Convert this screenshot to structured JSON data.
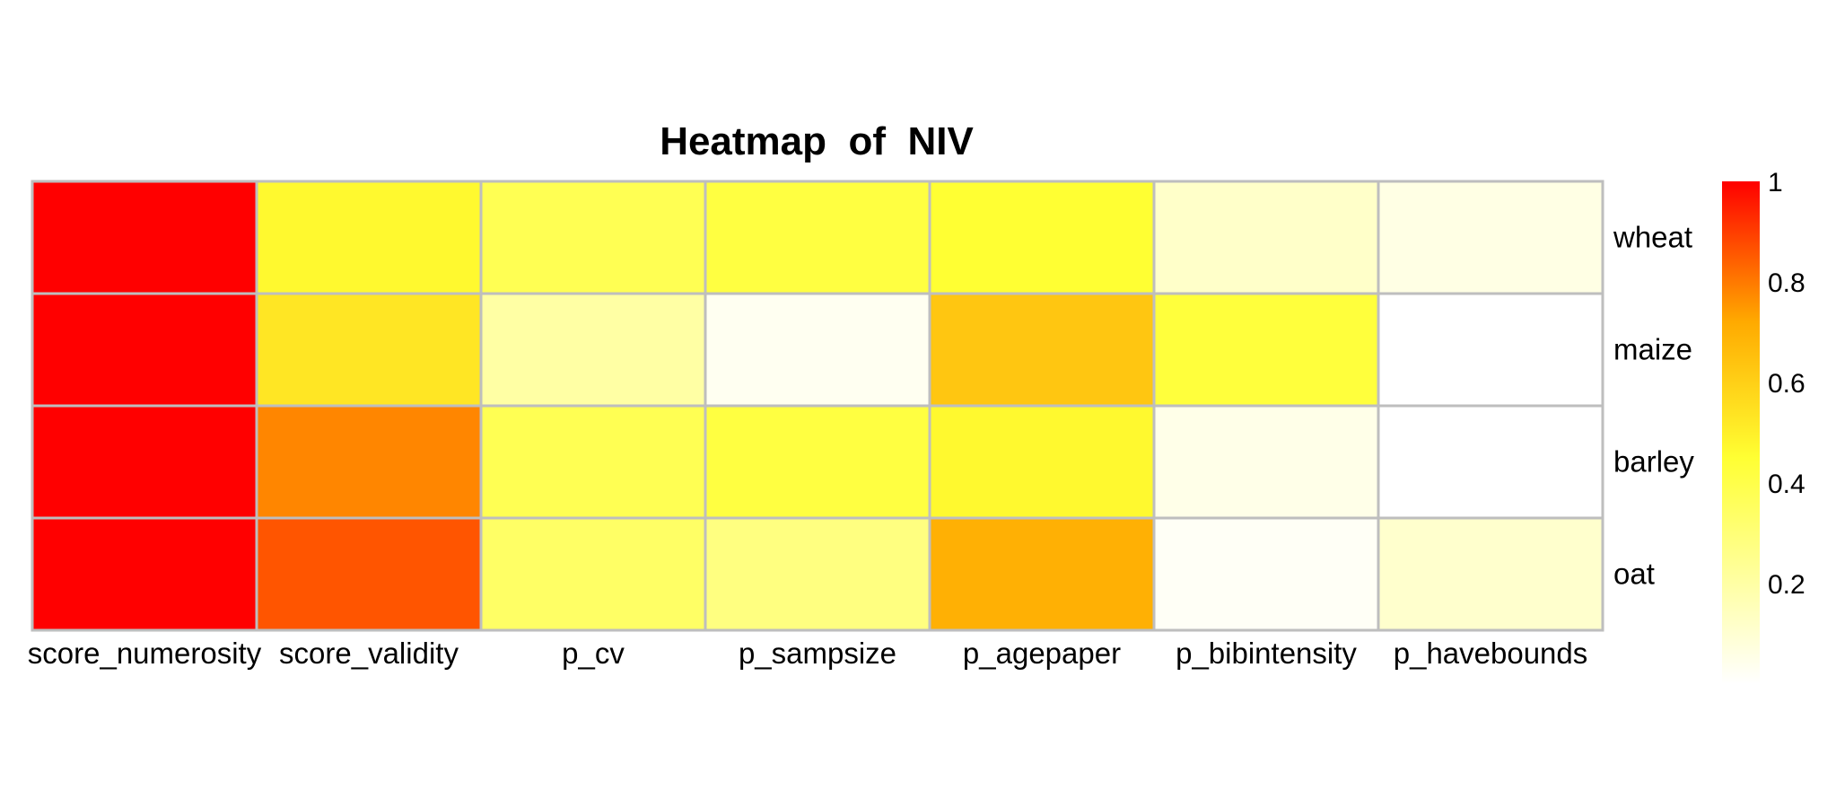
{
  "chart_data": {
    "type": "heatmap",
    "title": "Heatmap  of  NIV",
    "columns": [
      "score_numerosity",
      "score_validity",
      "p_cv",
      "p_sampsize",
      "p_agepaper",
      "p_bibintensity",
      "p_havebounds"
    ],
    "rows": [
      "wheat",
      "maize",
      "barley",
      "oat"
    ],
    "values": [
      [
        1.0,
        0.47,
        0.38,
        0.42,
        0.45,
        0.12,
        0.06
      ],
      [
        1.0,
        0.53,
        0.2,
        0.03,
        0.63,
        0.43,
        0.0
      ],
      [
        1.0,
        0.78,
        0.38,
        0.42,
        0.47,
        0.05,
        0.0
      ],
      [
        1.0,
        0.86,
        0.34,
        0.28,
        0.7,
        0.02,
        0.11
      ]
    ],
    "colorbar": {
      "ticks": [
        "0.2",
        "0.4",
        "0.6",
        "0.8",
        "1"
      ],
      "range": [
        0,
        1
      ],
      "colors": [
        "#ffffff",
        "#ffff33",
        "#ffaa00",
        "#ff0000"
      ]
    },
    "grid": true,
    "legend_position": "right"
  }
}
